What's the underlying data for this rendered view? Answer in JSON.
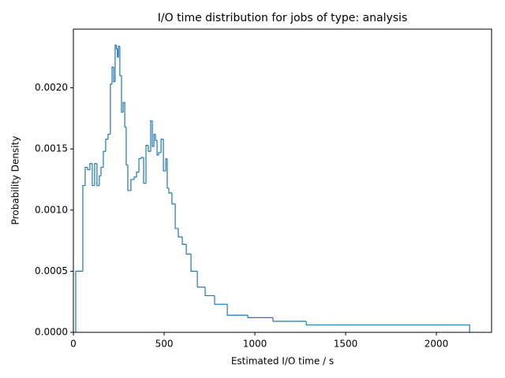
{
  "chart_data": {
    "type": "histogram",
    "title": "I/O time distribution for jobs of type: analysis",
    "x_label": "Estimated I/O time / s",
    "y_label": "Probability Density",
    "bins": [
      13,
      52,
      65,
      78,
      91,
      104,
      117,
      130,
      143,
      152,
      165,
      178,
      191,
      204,
      213,
      222,
      230,
      237,
      243,
      248,
      256,
      265,
      274,
      283,
      291,
      300,
      317,
      335,
      348,
      361,
      374,
      387,
      400,
      413,
      426,
      435,
      444,
      452,
      461,
      470,
      483,
      496,
      509,
      517,
      526,
      543,
      561,
      578,
      600,
      622,
      648,
      683,
      726,
      778,
      848,
      961,
      1100,
      1283,
      2183
    ],
    "counts": [
      0.0005,
      0.0012,
      0.00135,
      0.00133,
      0.00138,
      0.0012,
      0.00138,
      0.0012,
      0.00128,
      0.00135,
      0.00148,
      0.00158,
      0.00162,
      0.00203,
      0.00217,
      0.00205,
      0.00235,
      0.00232,
      0.00225,
      0.00234,
      0.0021,
      0.0018,
      0.00188,
      0.00168,
      0.00137,
      0.00116,
      0.00125,
      0.00127,
      0.00131,
      0.00142,
      0.00143,
      0.00122,
      0.00153,
      0.00148,
      0.00173,
      0.00152,
      0.00162,
      0.00157,
      0.00145,
      0.00147,
      0.00158,
      0.00132,
      0.00142,
      0.00118,
      0.00114,
      0.00105,
      0.00085,
      0.00078,
      0.00072,
      0.00064,
      0.0005,
      0.00037,
      0.0003,
      0.00023,
      0.00014,
      0.00012,
      9e-05,
      6e-05
    ],
    "color": "#1f77b4",
    "xlim": [
      0,
      2304
    ],
    "xticks": [
      0,
      500,
      1000,
      1500,
      2000
    ],
    "ylim": [
      0,
      0.00248
    ],
    "yticks": [
      {
        "value": 0,
        "label": "0.0000"
      },
      {
        "value": 0.0005,
        "label": "0.0005"
      },
      {
        "value": 0.001,
        "label": "0.0010"
      },
      {
        "value": 0.0015,
        "label": "0.0015"
      },
      {
        "value": 0.002,
        "label": "0.0020"
      }
    ]
  }
}
